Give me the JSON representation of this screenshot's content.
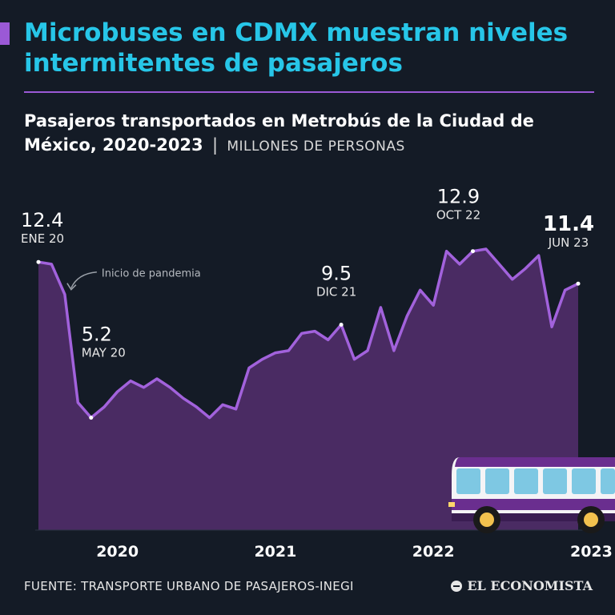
{
  "header": {
    "title": "Microbuses en CDMX muestran niveles intermitentes de pasajeros",
    "subtitle": "Pasajeros transportados en Metrobús de la Ciudad de México, 2020-2023",
    "separator": "|",
    "unit": "MILLONES DE PERSONAS"
  },
  "footer": {
    "source": "FUENTE: TRANSPORTE URBANO DE PASAJEROS-INEGI",
    "brand": "EL ECONOMISTA"
  },
  "colors": {
    "background": "#141b26",
    "title": "#27c6e8",
    "accent": "#9b59d6",
    "area_fill": "#4a2b63",
    "line": "#a262dc"
  },
  "chart_data": {
    "type": "area",
    "title": "Pasajeros transportados en Metrobús de la Ciudad de México, 2020-2023",
    "ylabel": "MILLONES DE PERSONAS",
    "ylim": [
      0,
      14
    ],
    "grid": false,
    "legend": "none",
    "x": [
      "2020-01",
      "2020-02",
      "2020-03",
      "2020-04",
      "2020-05",
      "2020-06",
      "2020-07",
      "2020-08",
      "2020-09",
      "2020-10",
      "2020-11",
      "2020-12",
      "2021-01",
      "2021-02",
      "2021-03",
      "2021-04",
      "2021-05",
      "2021-06",
      "2021-07",
      "2021-08",
      "2021-09",
      "2021-10",
      "2021-11",
      "2021-12",
      "2022-01",
      "2022-02",
      "2022-03",
      "2022-04",
      "2022-05",
      "2022-06",
      "2022-07",
      "2022-08",
      "2022-09",
      "2022-10",
      "2022-11",
      "2022-12",
      "2023-01",
      "2023-02",
      "2023-03",
      "2023-04",
      "2023-05",
      "2023-06"
    ],
    "series": [
      {
        "values": [
          12.4,
          12.3,
          10.9,
          5.9,
          5.2,
          5.7,
          6.4,
          6.9,
          6.6,
          7.0,
          6.6,
          6.1,
          5.7,
          5.2,
          5.8,
          5.6,
          7.5,
          7.9,
          8.2,
          8.3,
          9.1,
          9.2,
          8.8,
          9.5,
          7.9,
          8.3,
          10.3,
          8.3,
          9.9,
          11.1,
          10.4,
          12.9,
          12.3,
          12.9,
          13.0,
          12.3,
          11.6,
          12.1,
          12.7,
          9.4,
          11.1,
          11.4
        ]
      }
    ],
    "xticks": [
      {
        "label": "2020",
        "x": "2020-07"
      },
      {
        "label": "2021",
        "x": "2021-07"
      },
      {
        "label": "2022",
        "x": "2022-07"
      },
      {
        "label": "2023",
        "x": "2023-07"
      }
    ],
    "annotations": [
      {
        "index": 0,
        "value": "12.4",
        "label": "ENE 20",
        "bold": false
      },
      {
        "index": 4,
        "value": "5.2",
        "label": "MAY 20",
        "bold": false
      },
      {
        "index": 23,
        "value": "9.5",
        "label": "DIC 21",
        "bold": false
      },
      {
        "index": 33,
        "value": "12.9",
        "label": "OCT 22",
        "bold": false
      },
      {
        "index": 41,
        "value": "11.4",
        "label": "JUN 23",
        "bold": true
      }
    ],
    "callout": {
      "index": 2,
      "text": "Inicio de pandemia"
    }
  }
}
